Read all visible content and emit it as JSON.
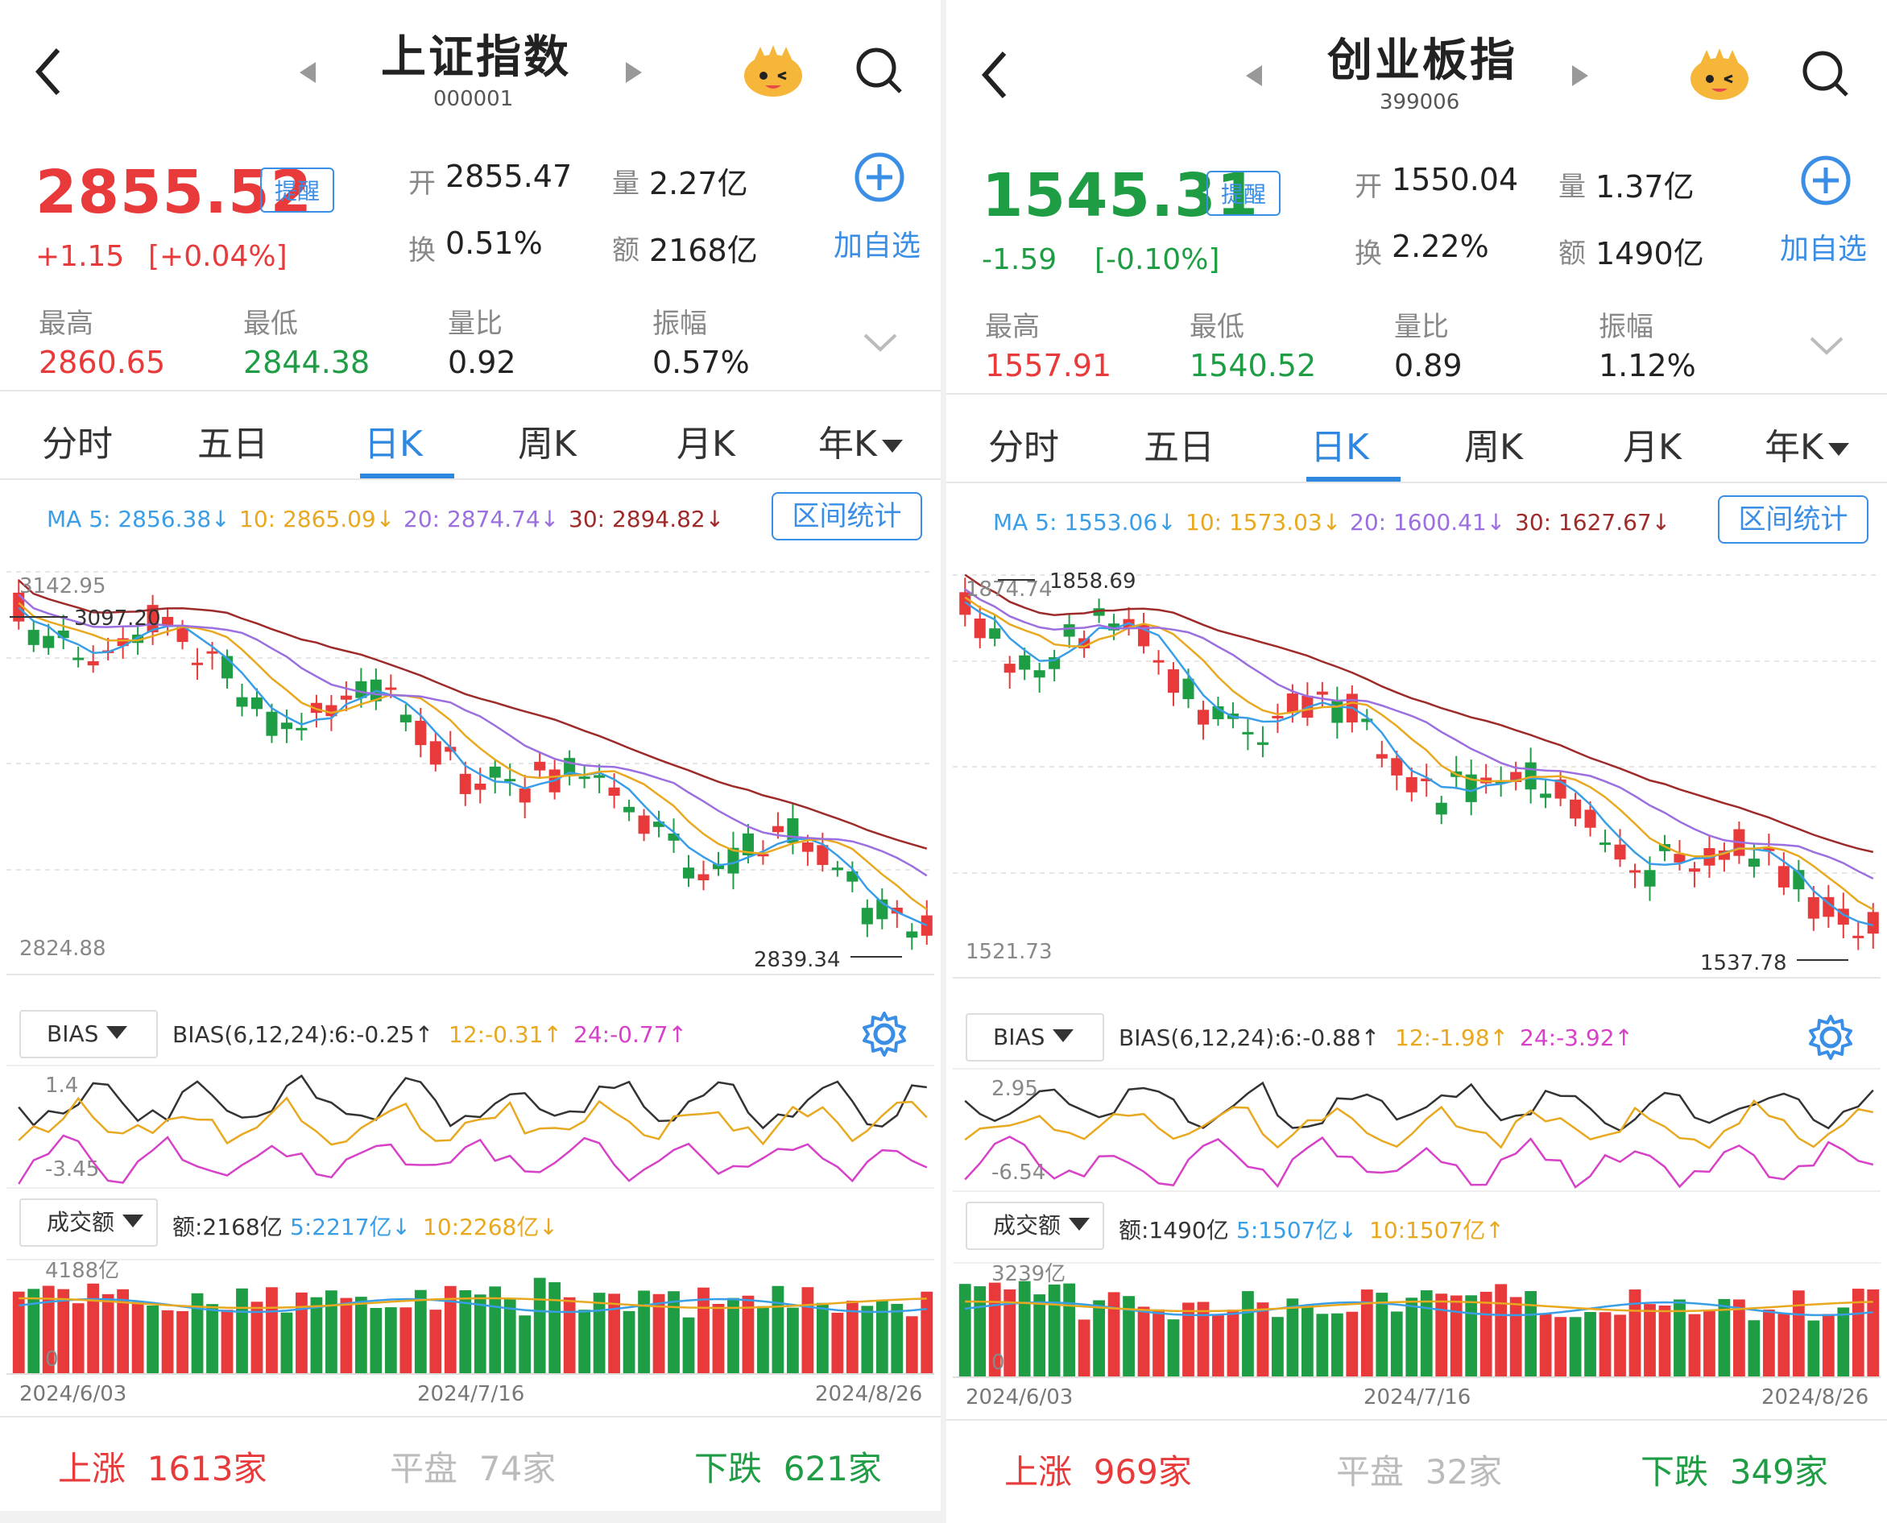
{
  "colors": {
    "up": "#e83a3a",
    "down": "#1f9d45",
    "accent": "#2e88e0",
    "ma5": "#3a9ee6",
    "ma10": "#e8a81f",
    "ma20": "#9b6fe0",
    "ma30": "#9e2a2a",
    "bias_short": "#333333",
    "bias_mid": "#e8a81f",
    "bias_long": "#d641c8"
  },
  "panels": [
    {
      "title": "上证指数",
      "code": "000001",
      "price": "2855.52",
      "price_dir": "up",
      "change": "+1.15",
      "change_pct": "[+0.04%]",
      "remind": "提醒",
      "open_k": "开",
      "open": "2855.47",
      "vol_k": "量",
      "vol": "2.27亿",
      "turn_k": "换",
      "turn": "0.51%",
      "amt_k": "额",
      "amt": "2168亿",
      "add": "加自选",
      "high_k": "最高",
      "high": "2860.65",
      "low_k": "最低",
      "low": "2844.38",
      "vr_k": "量比",
      "vr": "0.92",
      "amp_k": "振幅",
      "amp": "0.57%",
      "tabs": [
        "分时",
        "五日",
        "日K",
        "周K",
        "月K",
        "年K"
      ],
      "active_tab": 2,
      "ma5": "MA 5: 2856.38↓",
      "ma10": "10: 2865.09↓",
      "ma20": "20: 2874.74↓",
      "ma30": "30: 2894.82↓",
      "range_btn": "区间统计",
      "price_top": "3142.95",
      "price_hi": "3097.20",
      "price_bottom": "2824.88",
      "price_lo": "2839.34",
      "bias_btn": "BIAS",
      "bias_label": "BIAS(6,12,24):",
      "bias6": "6:-0.25↑",
      "bias12": "12:-0.31↑",
      "bias24": "24:-0.77↑",
      "bias_top": "1.4",
      "bias_bottom": "-3.45",
      "vol_btn": "成交额",
      "vol_label": "额:2168亿",
      "vol5": "5:2217亿↓",
      "vol10": "10:2268亿↓",
      "vol_top": "4188亿",
      "vol_zero": "0",
      "dates": [
        "2024/6/03",
        "2024/7/16",
        "2024/8/26"
      ],
      "up_label": "上涨",
      "up_count": "1613家",
      "flat_label": "平盘",
      "flat_count": "74家",
      "down_label": "下跌",
      "down_count": "621家"
    },
    {
      "title": "创业板指",
      "code": "399006",
      "price": "1545.31",
      "price_dir": "down",
      "change": "-1.59",
      "change_pct": "[-0.10%]",
      "remind": "提醒",
      "open_k": "开",
      "open": "1550.04",
      "vol_k": "量",
      "vol": "1.37亿",
      "turn_k": "换",
      "turn": "2.22%",
      "amt_k": "额",
      "amt": "1490亿",
      "add": "加自选",
      "high_k": "最高",
      "high": "1557.91",
      "low_k": "最低",
      "low": "1540.52",
      "vr_k": "量比",
      "vr": "0.89",
      "amp_k": "振幅",
      "amp": "1.12%",
      "tabs": [
        "分时",
        "五日",
        "日K",
        "周K",
        "月K",
        "年K"
      ],
      "active_tab": 2,
      "ma5": "MA 5: 1553.06↓",
      "ma10": "10: 1573.03↓",
      "ma20": "20: 1600.41↓",
      "ma30": "30: 1627.67↓",
      "range_btn": "区间统计",
      "price_top": "1874.74",
      "price_hi": "1858.69",
      "price_bottom": "1521.73",
      "price_lo": "1537.78",
      "bias_btn": "BIAS",
      "bias_label": "BIAS(6,12,24):",
      "bias6": "6:-0.88↑",
      "bias12": "12:-1.98↑",
      "bias24": "24:-3.92↑",
      "bias_top": "2.95",
      "bias_bottom": "-6.54",
      "vol_btn": "成交额",
      "vol_label": "额:1490亿",
      "vol5": "5:1507亿↓",
      "vol10": "10:1507亿↑",
      "vol_top": "3239亿",
      "vol_zero": "0",
      "dates": [
        "2024/6/03",
        "2024/7/16",
        "2024/8/26"
      ],
      "up_label": "上涨",
      "up_count": "969家",
      "flat_label": "平盘",
      "flat_count": "32家",
      "down_label": "下跌",
      "down_count": "349家"
    }
  ]
}
